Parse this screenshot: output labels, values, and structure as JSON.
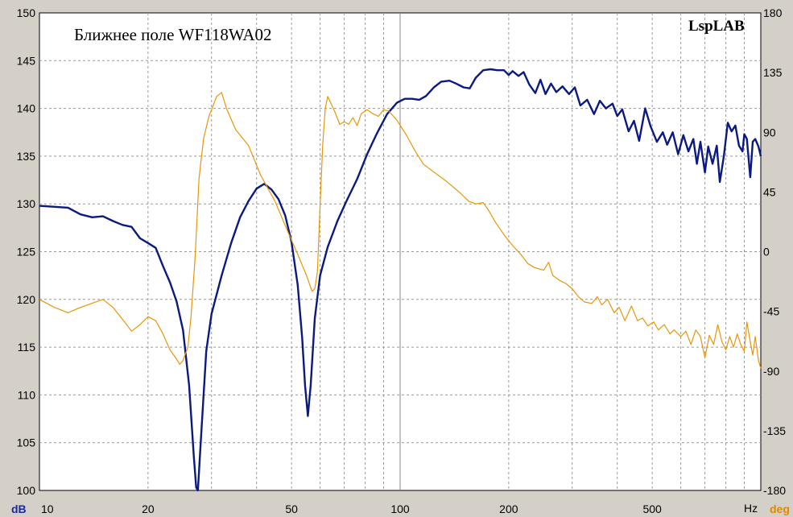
{
  "chart_data": {
    "type": "line",
    "title": "Ближнее поле WF118WA02",
    "brand": "LspLAB",
    "x_scale": "log",
    "xlim": [
      10,
      1000
    ],
    "ylim_left": [
      100,
      150
    ],
    "ylim_right": [
      -180,
      180
    ],
    "xlabel": "Hz",
    "ylabel_left": "dB",
    "ylabel_right": "deg",
    "x_ticks": [
      10,
      20,
      50,
      100,
      200,
      500
    ],
    "y_ticks_left": [
      100,
      105,
      110,
      115,
      120,
      125,
      130,
      135,
      140,
      145,
      150
    ],
    "y_ticks_right": [
      -180,
      -135,
      -90,
      -45,
      0,
      45,
      90,
      135,
      180
    ],
    "grid": true,
    "series": [
      {
        "color": "#0a1a80",
        "axis": "left",
        "points": [
          [
            10,
            129.8
          ],
          [
            12,
            129.6
          ],
          [
            13,
            128.9
          ],
          [
            14,
            128.6
          ],
          [
            15,
            128.7
          ],
          [
            16,
            128.2
          ],
          [
            17,
            127.8
          ],
          [
            18,
            127.6
          ],
          [
            19,
            126.4
          ],
          [
            20,
            125.9
          ],
          [
            21,
            125.4
          ],
          [
            22,
            123.5
          ],
          [
            23,
            121.8
          ],
          [
            24,
            119.8
          ],
          [
            25,
            116.8
          ],
          [
            26,
            111.0
          ],
          [
            26.8,
            103.5
          ],
          [
            27.2,
            100.3
          ],
          [
            27.5,
            100.0
          ],
          [
            28,
            105.0
          ],
          [
            29,
            114.6
          ],
          [
            30,
            118.5
          ],
          [
            32,
            122.5
          ],
          [
            34,
            125.9
          ],
          [
            36,
            128.6
          ],
          [
            38,
            130.3
          ],
          [
            40,
            131.6
          ],
          [
            42,
            132.1
          ],
          [
            44,
            131.5
          ],
          [
            46,
            130.5
          ],
          [
            48,
            128.8
          ],
          [
            50,
            126.0
          ],
          [
            52,
            121.5
          ],
          [
            53.5,
            116.0
          ],
          [
            54.5,
            111.0
          ],
          [
            55.5,
            107.8
          ],
          [
            56.5,
            111.0
          ],
          [
            58,
            118.0
          ],
          [
            60,
            122.5
          ],
          [
            63,
            125.5
          ],
          [
            67,
            128.2
          ],
          [
            71,
            130.3
          ],
          [
            76,
            132.6
          ],
          [
            81,
            135.2
          ],
          [
            86,
            137.3
          ],
          [
            92,
            139.4
          ],
          [
            98,
            140.6
          ],
          [
            103,
            141.0
          ],
          [
            108,
            141.0
          ],
          [
            113,
            140.9
          ],
          [
            118,
            141.3
          ],
          [
            124,
            142.2
          ],
          [
            130,
            142.8
          ],
          [
            137,
            142.9
          ],
          [
            143,
            142.6
          ],
          [
            150,
            142.2
          ],
          [
            156,
            142.1
          ],
          [
            162,
            143.2
          ],
          [
            170,
            144.0
          ],
          [
            178,
            144.1
          ],
          [
            186,
            144.0
          ],
          [
            194,
            144.0
          ],
          [
            200,
            143.5
          ],
          [
            205,
            143.9
          ],
          [
            213,
            143.4
          ],
          [
            220,
            143.8
          ],
          [
            228,
            142.5
          ],
          [
            237,
            141.6
          ],
          [
            245,
            143.0
          ],
          [
            253,
            141.5
          ],
          [
            262,
            142.6
          ],
          [
            271,
            141.7
          ],
          [
            282,
            142.3
          ],
          [
            294,
            141.5
          ],
          [
            305,
            142.2
          ],
          [
            316,
            140.3
          ],
          [
            330,
            140.9
          ],
          [
            345,
            139.4
          ],
          [
            358,
            140.8
          ],
          [
            372,
            140.0
          ],
          [
            388,
            140.5
          ],
          [
            400,
            139.2
          ],
          [
            413,
            139.9
          ],
          [
            430,
            137.6
          ],
          [
            445,
            138.7
          ],
          [
            460,
            136.6
          ],
          [
            478,
            140.0
          ],
          [
            495,
            138.1
          ],
          [
            515,
            136.5
          ],
          [
            535,
            137.5
          ],
          [
            550,
            136.2
          ],
          [
            570,
            137.5
          ],
          [
            590,
            135.2
          ],
          [
            610,
            137.2
          ],
          [
            630,
            135.5
          ],
          [
            650,
            136.8
          ],
          [
            665,
            134.2
          ],
          [
            680,
            136.5
          ],
          [
            700,
            133.3
          ],
          [
            715,
            136.0
          ],
          [
            735,
            134.2
          ],
          [
            755,
            136.1
          ],
          [
            770,
            132.3
          ],
          [
            790,
            135.0
          ],
          [
            810,
            138.5
          ],
          [
            830,
            137.6
          ],
          [
            850,
            138.2
          ],
          [
            870,
            136.1
          ],
          [
            890,
            135.5
          ],
          [
            900,
            137.3
          ],
          [
            915,
            136.8
          ],
          [
            935,
            132.8
          ],
          [
            950,
            136.5
          ],
          [
            965,
            136.8
          ],
          [
            985,
            136.0
          ],
          [
            1000,
            135.0
          ]
        ]
      },
      {
        "color": "#e8960a",
        "axis": "right",
        "points": [
          [
            10,
            -36
          ],
          [
            11,
            -42
          ],
          [
            12,
            -46
          ],
          [
            13,
            -42
          ],
          [
            15,
            -36
          ],
          [
            16,
            -42
          ],
          [
            17,
            -51
          ],
          [
            18,
            -60
          ],
          [
            19,
            -55
          ],
          [
            20,
            -49
          ],
          [
            21,
            -52
          ],
          [
            22,
            -62
          ],
          [
            23,
            -74
          ],
          [
            24,
            -81
          ],
          [
            24.5,
            -85
          ],
          [
            25,
            -82
          ],
          [
            25.8,
            -72
          ],
          [
            26.3,
            -50
          ],
          [
            27,
            -5
          ],
          [
            27.7,
            55
          ],
          [
            28.5,
            85
          ],
          [
            29.5,
            102
          ],
          [
            31,
            117
          ],
          [
            32,
            120
          ],
          [
            33,
            108
          ],
          [
            35,
            92
          ],
          [
            38,
            80
          ],
          [
            41,
            58
          ],
          [
            45,
            38
          ],
          [
            49,
            14
          ],
          [
            52,
            -2
          ],
          [
            55,
            -18
          ],
          [
            57,
            -30
          ],
          [
            58,
            -28
          ],
          [
            59,
            -15
          ],
          [
            60,
            35
          ],
          [
            61,
            80
          ],
          [
            62,
            108
          ],
          [
            63,
            117
          ],
          [
            64,
            113
          ],
          [
            66,
            105
          ],
          [
            68,
            96
          ],
          [
            70,
            98
          ],
          [
            72,
            96
          ],
          [
            74,
            101
          ],
          [
            76,
            95
          ],
          [
            78,
            104
          ],
          [
            81,
            107
          ],
          [
            84,
            104
          ],
          [
            87,
            102
          ],
          [
            90,
            107
          ],
          [
            93,
            106
          ],
          [
            98,
            99
          ],
          [
            104,
            88
          ],
          [
            110,
            76
          ],
          [
            116,
            66
          ],
          [
            124,
            60
          ],
          [
            133,
            54
          ],
          [
            140,
            49
          ],
          [
            147,
            44
          ],
          [
            155,
            38
          ],
          [
            162,
            36
          ],
          [
            170,
            37
          ],
          [
            176,
            31
          ],
          [
            184,
            22
          ],
          [
            195,
            12
          ],
          [
            206,
            4
          ],
          [
            216,
            -2
          ],
          [
            226,
            -9
          ],
          [
            236,
            -12
          ],
          [
            250,
            -14
          ],
          [
            258,
            -8
          ],
          [
            265,
            -18
          ],
          [
            278,
            -22
          ],
          [
            288,
            -24
          ],
          [
            300,
            -28
          ],
          [
            312,
            -34
          ],
          [
            325,
            -38
          ],
          [
            340,
            -39
          ],
          [
            352,
            -34
          ],
          [
            362,
            -40
          ],
          [
            376,
            -36
          ],
          [
            392,
            -46
          ],
          [
            405,
            -42
          ],
          [
            420,
            -52
          ],
          [
            438,
            -41
          ],
          [
            455,
            -52
          ],
          [
            470,
            -50
          ],
          [
            486,
            -56
          ],
          [
            505,
            -53
          ],
          [
            520,
            -59
          ],
          [
            540,
            -55
          ],
          [
            560,
            -62
          ],
          [
            575,
            -59
          ],
          [
            600,
            -64
          ],
          [
            620,
            -60
          ],
          [
            640,
            -70
          ],
          [
            660,
            -59
          ],
          [
            680,
            -64
          ],
          [
            700,
            -80
          ],
          [
            720,
            -63
          ],
          [
            740,
            -70
          ],
          [
            760,
            -55
          ],
          [
            780,
            -68
          ],
          [
            800,
            -74
          ],
          [
            820,
            -64
          ],
          [
            840,
            -72
          ],
          [
            860,
            -62
          ],
          [
            880,
            -70
          ],
          [
            900,
            -75
          ],
          [
            915,
            -53
          ],
          [
            935,
            -68
          ],
          [
            950,
            -78
          ],
          [
            965,
            -64
          ],
          [
            985,
            -82
          ],
          [
            1000,
            -88
          ]
        ]
      }
    ]
  }
}
